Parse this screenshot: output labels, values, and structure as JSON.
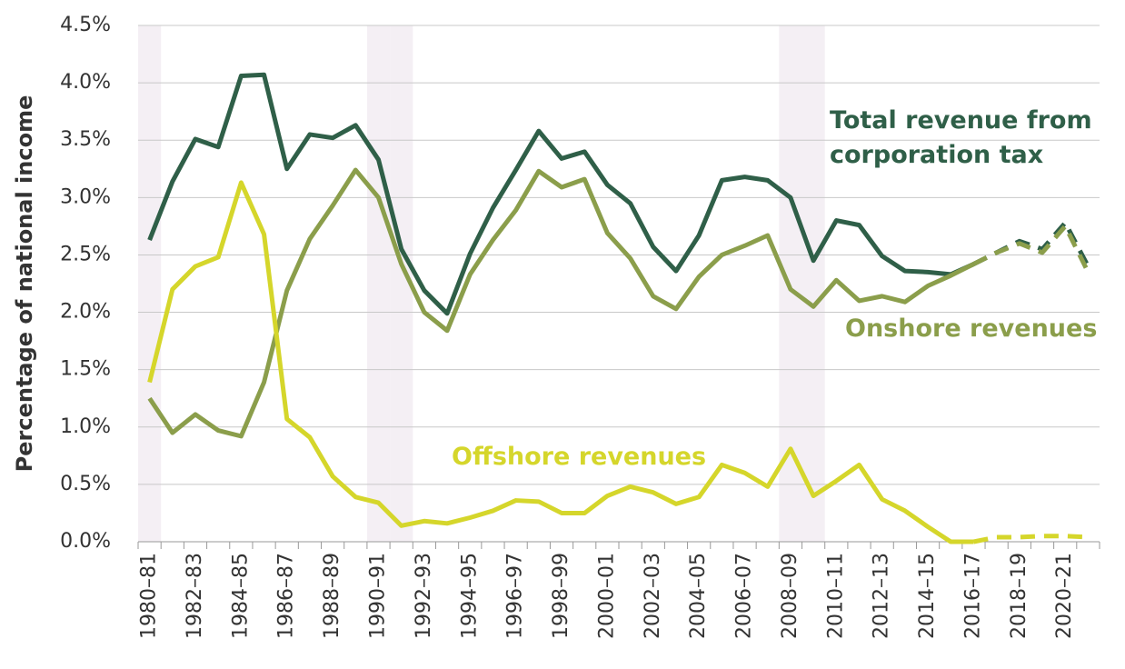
{
  "chart_data": {
    "type": "line",
    "y_label": "Percentage of national income",
    "categories": [
      "1980–81",
      null,
      "1982–83",
      null,
      "1984–85",
      null,
      "1986–87",
      null,
      "1988–89",
      null,
      "1990–91",
      null,
      "1992–93",
      null,
      "1994–95",
      null,
      "1996–97",
      null,
      "1998–99",
      null,
      "2000–01",
      null,
      "2002–03",
      null,
      "2004–05",
      null,
      "2006–07",
      null,
      "2008–09",
      null,
      "2010–11",
      null,
      "2012–13",
      null,
      "2014–15",
      null,
      "2016–17",
      null,
      "2018–19",
      null,
      "2020–21",
      null
    ],
    "series": [
      {
        "name": "Total revenue from corporation tax",
        "color": "#2f5f48",
        "values": [
          2.63,
          3.14,
          3.51,
          3.44,
          4.06,
          4.07,
          3.25,
          3.55,
          3.52,
          3.63,
          3.33,
          2.55,
          2.19,
          1.99,
          2.51,
          2.91,
          3.24,
          3.58,
          3.34,
          3.4,
          3.11,
          2.95,
          2.57,
          2.36,
          2.67,
          3.15,
          3.18,
          3.15,
          3.0,
          2.45,
          2.8,
          2.76,
          2.49,
          2.36,
          2.35,
          2.33,
          2.42,
          2.52,
          2.62,
          2.55,
          2.78,
          2.4
        ]
      },
      {
        "name": "Onshore revenues",
        "color": "#8b9e4b",
        "values": [
          1.25,
          0.95,
          1.11,
          0.97,
          0.92,
          1.39,
          2.19,
          2.64,
          2.93,
          3.24,
          3.0,
          2.42,
          2.0,
          1.84,
          2.33,
          2.63,
          2.89,
          3.23,
          3.09,
          3.16,
          2.69,
          2.47,
          2.14,
          2.03,
          2.31,
          2.5,
          2.58,
          2.67,
          2.2,
          2.05,
          2.28,
          2.1,
          2.14,
          2.09,
          2.23,
          2.32,
          2.42,
          2.52,
          2.6,
          2.52,
          2.75,
          2.35
        ]
      },
      {
        "name": "Offshore revenues",
        "color": "#d5d62b",
        "values": [
          1.39,
          2.2,
          2.4,
          2.48,
          3.13,
          2.68,
          1.07,
          0.91,
          0.57,
          0.39,
          0.34,
          0.14,
          0.18,
          0.16,
          0.21,
          0.27,
          0.36,
          0.35,
          0.25,
          0.25,
          0.4,
          0.48,
          0.43,
          0.33,
          0.39,
          0.67,
          0.6,
          0.48,
          0.81,
          0.4,
          0.53,
          0.67,
          0.37,
          0.27,
          0.13,
          0.0,
          0.0,
          0.04,
          0.04,
          0.05,
          0.05,
          0.04
        ]
      }
    ],
    "dashed_from_index": 36,
    "shaded_category_indices": [
      0,
      10,
      11,
      28,
      29
    ],
    "ylim": [
      0,
      4.5
    ],
    "yticks": [
      {
        "value": 0,
        "label": "0.0%"
      },
      {
        "value": 0.5,
        "label": "0.5%"
      },
      {
        "value": 1,
        "label": "1.0%"
      },
      {
        "value": 1.5,
        "label": "1.5%"
      },
      {
        "value": 2,
        "label": "2.0%"
      },
      {
        "value": 2.5,
        "label": "2.5%"
      },
      {
        "value": 3,
        "label": "3.0%"
      },
      {
        "value": 3.5,
        "label": "3.5%"
      },
      {
        "value": 4,
        "label": "4.0%"
      },
      {
        "value": 4.5,
        "label": "4.5%"
      }
    ],
    "grid": true
  }
}
